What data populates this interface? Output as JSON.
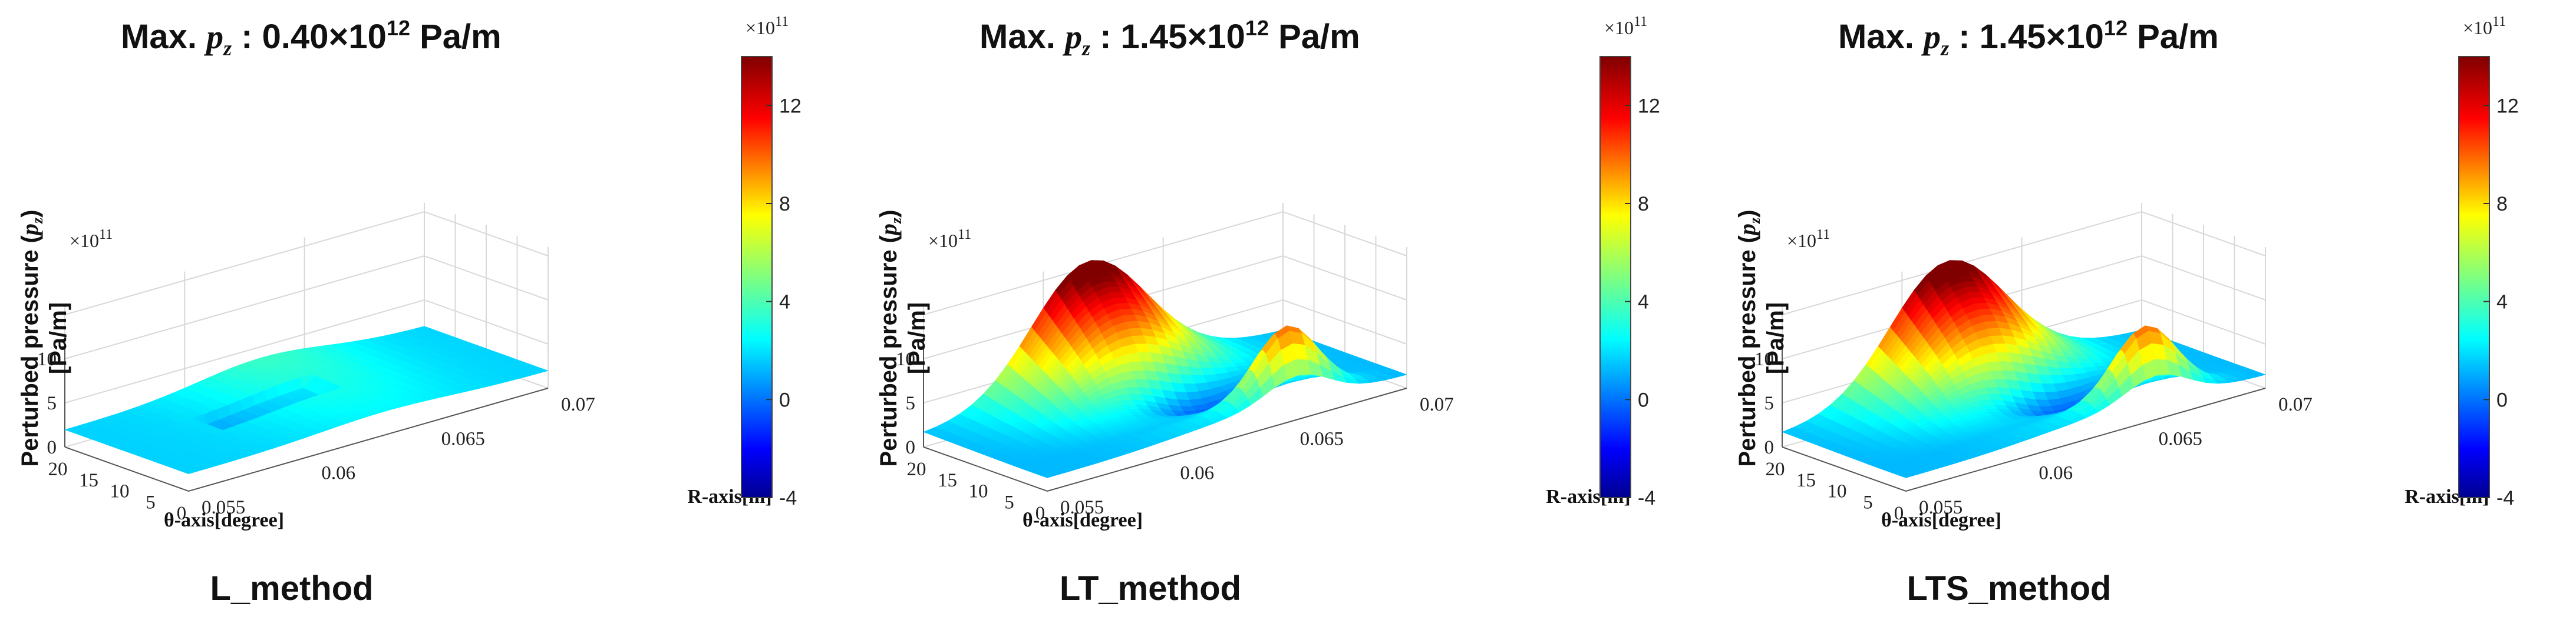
{
  "chart_data": [
    {
      "type": "surface",
      "method_label": "L_method",
      "max_title": {
        "prefix": "Max.",
        "symbol": "p",
        "sub": "z",
        "sep": ":",
        "value": "0.40×10",
        "exp": "12",
        "unit": "Pa/m"
      },
      "x_label": "θ-axis[degree]",
      "y_label": "R-axis[m]",
      "z_label": "Perturbed pressure (pz) [Pa/m]",
      "z_label_lines": {
        "line1": "Perturbed pressure (",
        "sym": "p",
        "sub": "z",
        "close": ")",
        "line2": "[Pa/m]"
      },
      "z_multiplier": "×10",
      "z_multiplier_exp": "11",
      "x_ticks": [
        "20",
        "15",
        "10",
        "5",
        "0"
      ],
      "y_ticks": [
        "0.055",
        "0.06",
        "0.065",
        "0.07"
      ],
      "z_ticks": [
        "10",
        "5",
        "0"
      ],
      "colorbar": {
        "ticks": [
          "12",
          "8",
          "4",
          "0",
          "-4"
        ],
        "multiplier": "×10",
        "exp": "11",
        "range": [
          -4,
          14
        ]
      },
      "peak_value": 4
    },
    {
      "type": "surface",
      "method_label": "LT_method",
      "max_title": {
        "prefix": "Max.",
        "symbol": "p",
        "sub": "z",
        "sep": ":",
        "value": "1.45×10",
        "exp": "12",
        "unit": "Pa/m"
      },
      "x_label": "θ-axis[degree]",
      "y_label": "R-axis[m]",
      "z_label": "Perturbed pressure (pz) [Pa/m]",
      "z_label_lines": {
        "line1": "Perturbed pressure (",
        "sym": "p",
        "sub": "z",
        "close": ")",
        "line2": "[Pa/m]"
      },
      "z_multiplier": "×10",
      "z_multiplier_exp": "11",
      "x_ticks": [
        "20",
        "15",
        "10",
        "5",
        "0"
      ],
      "y_ticks": [
        "0.055",
        "0.06",
        "0.065",
        "0.07"
      ],
      "z_ticks": [
        "10",
        "5",
        "0"
      ],
      "colorbar": {
        "ticks": [
          "12",
          "8",
          "4",
          "0",
          "-4"
        ],
        "multiplier": "×10",
        "exp": "11",
        "range": [
          -4,
          14
        ]
      },
      "peak_value": 14.5
    },
    {
      "type": "surface",
      "method_label": "LTS_method",
      "max_title": {
        "prefix": "Max.",
        "symbol": "p",
        "sub": "z",
        "sep": ":",
        "value": "1.45×10",
        "exp": "12",
        "unit": "Pa/m"
      },
      "x_label": "θ-axis[degree]",
      "y_label": "R-axis[m]",
      "z_label": "Perturbed pressure (pz) [Pa/m]",
      "z_label_lines": {
        "line1": "Perturbed pressure (",
        "sym": "p",
        "sub": "z",
        "close": ")",
        "line2": "[Pa/m]"
      },
      "z_multiplier": "×10",
      "z_multiplier_exp": "11",
      "x_ticks": [
        "20",
        "15",
        "10",
        "5",
        "0"
      ],
      "y_ticks": [
        "0.055",
        "0.06",
        "0.065",
        "0.07"
      ],
      "z_ticks": [
        "10",
        "5",
        "0"
      ],
      "colorbar": {
        "ticks": [
          "12",
          "8",
          "4",
          "0",
          "-4"
        ],
        "multiplier": "×10",
        "exp": "11",
        "range": [
          -4,
          14
        ]
      },
      "peak_value": 14.5
    }
  ]
}
